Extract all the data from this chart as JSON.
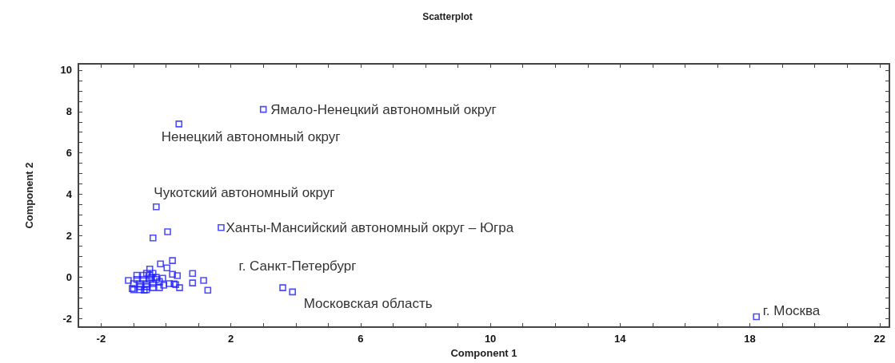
{
  "chart_data": {
    "type": "scatter",
    "title": "Scatterplot",
    "xlabel": "Component 1",
    "ylabel": "Component 2",
    "xlim": [
      -2.7,
      22.3
    ],
    "ylim": [
      -2.4,
      10.3
    ],
    "xticks": [
      -2,
      {
        "value": -1,
        "label": null
      },
      {
        "value": 0,
        "label": null
      },
      {
        "value": 1,
        "label": null
      },
      2,
      {
        "value": 3,
        "label": null
      },
      {
        "value": 4,
        "label": null
      },
      {
        "value": 5,
        "label": null
      },
      6,
      {
        "value": 7,
        "label": null
      },
      {
        "value": 8,
        "label": null
      },
      {
        "value": 9,
        "label": null
      },
      10,
      {
        "value": 11,
        "label": null
      },
      {
        "value": 12,
        "label": null
      },
      {
        "value": 13,
        "label": null
      },
      14,
      {
        "value": 15,
        "label": null
      },
      {
        "value": 16,
        "label": null
      },
      {
        "value": 17,
        "label": null
      },
      18,
      {
        "value": 19,
        "label": null
      },
      {
        "value": 20,
        "label": null
      },
      {
        "value": 21,
        "label": null
      },
      22
    ],
    "yticks": [
      -2,
      {
        "value": -1.5,
        "label": null
      },
      {
        "value": -1,
        "label": null
      },
      {
        "value": -0.5,
        "label": null
      },
      0,
      {
        "value": 0.5,
        "label": null
      },
      {
        "value": 1,
        "label": null
      },
      {
        "value": 1.5,
        "label": null
      },
      2,
      {
        "value": 2.5,
        "label": null
      },
      {
        "value": 3,
        "label": null
      },
      {
        "value": 3.5,
        "label": null
      },
      4,
      {
        "value": 4.5,
        "label": null
      },
      {
        "value": 5,
        "label": null
      },
      {
        "value": 5.5,
        "label": null
      },
      6,
      {
        "value": 6.5,
        "label": null
      },
      {
        "value": 7,
        "label": null
      },
      {
        "value": 7.5,
        "label": null
      },
      8,
      {
        "value": 8.5,
        "label": null
      },
      {
        "value": 9,
        "label": null
      },
      {
        "value": 9.5,
        "label": null
      },
      10
    ],
    "grid": false,
    "marker": "square",
    "series": [
      {
        "color": "#2020ff",
        "x": [
          3.0,
          0.4,
          -0.3,
          1.7,
          3.6,
          3.9,
          18.2,
          -0.4,
          0.05,
          -0.17,
          0.03,
          0.2,
          -0.5,
          -1.16,
          -0.1,
          -0.07,
          0.2,
          0.35,
          0.42,
          0.82,
          0.82,
          1.16,
          1.29,
          -0.44,
          0.25,
          -0.67,
          -1.04,
          -1.0,
          -0.8,
          -0.6,
          -0.4,
          -0.2,
          -1.0,
          -0.8,
          -0.6,
          -0.4,
          -0.2,
          -0.9,
          -0.7,
          -0.5,
          -0.3,
          -0.9,
          -0.7,
          -0.5,
          -0.3,
          -0.8,
          -0.6,
          -0.4,
          -0.6,
          0.1,
          0.3
        ],
        "values": [
          8.1,
          7.4,
          3.4,
          2.4,
          -0.5,
          -0.7,
          -1.9,
          1.9,
          2.2,
          0.65,
          0.46,
          0.81,
          0.4,
          -0.15,
          -0.04,
          -0.38,
          0.15,
          0.08,
          -0.5,
          0.19,
          -0.27,
          -0.15,
          -0.62,
          0.0,
          -0.31,
          -0.62,
          -0.54,
          -0.6,
          -0.6,
          -0.6,
          -0.5,
          -0.5,
          -0.3,
          -0.3,
          -0.3,
          -0.3,
          -0.2,
          -0.1,
          -0.1,
          -0.1,
          -0.1,
          0.1,
          0.1,
          0.1,
          0.0,
          -0.45,
          -0.45,
          0.2,
          0.2,
          -0.3,
          -0.35
        ]
      }
    ],
    "annotations": [
      {
        "text": "Ямало-Ненецкий автономный округ",
        "x": 3.0,
        "y": 8.1
      },
      {
        "text": "Ненецкий автономный округ",
        "x": 0.4,
        "y": 7.4
      },
      {
        "text": "Чукотский автономный округ",
        "x": -0.3,
        "y": 3.4
      },
      {
        "text": "Ханты-Мансийский автономный округ – Югра",
        "x": 1.7,
        "y": 2.4
      },
      {
        "text": "г. Санкт-Петербург",
        "x": 3.6,
        "y": -0.5
      },
      {
        "text": "Московская область",
        "x": 3.9,
        "y": -0.7
      },
      {
        "text": "г. Москва",
        "x": 18.2,
        "y": -1.9
      }
    ]
  }
}
